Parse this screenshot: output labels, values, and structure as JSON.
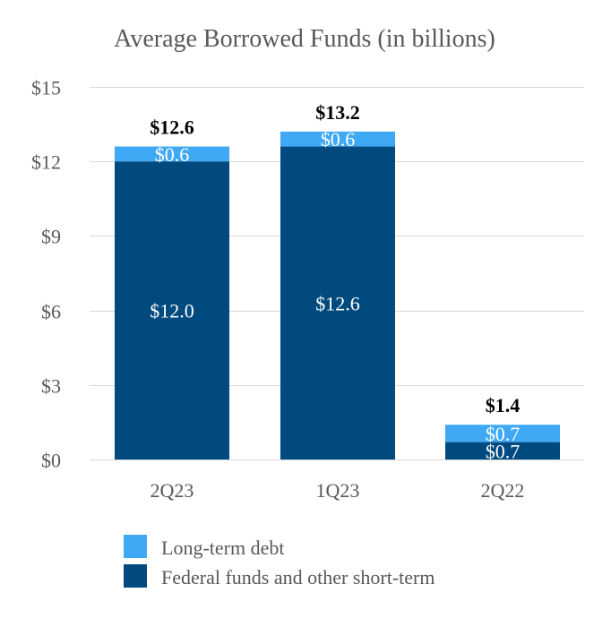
{
  "chart_data": {
    "type": "bar",
    "stacked": true,
    "title": "Average Borrowed Funds (in billions)",
    "categories": [
      "2Q23",
      "1Q23",
      "2Q22"
    ],
    "series": [
      {
        "name": "Federal funds and other short-term",
        "values": [
          12.0,
          12.6,
          0.7
        ],
        "labels": [
          "$12.0",
          "$12.6",
          "$0.7"
        ],
        "color": "#004a7f"
      },
      {
        "name": "Long-term debt",
        "values": [
          0.6,
          0.6,
          0.7
        ],
        "labels": [
          "$0.6",
          "$0.6",
          "$0.7"
        ],
        "color": "#3fa9f5"
      }
    ],
    "totals": [
      12.6,
      13.2,
      1.4
    ],
    "total_labels": [
      "$12.6",
      "$13.2",
      "$1.4"
    ],
    "ylim": [
      0,
      15
    ],
    "yticks": [
      0,
      3,
      6,
      9,
      12,
      15
    ],
    "ytick_labels": [
      "$0",
      "$3",
      "$6",
      "$9",
      "$12",
      "$15"
    ],
    "grid": true,
    "legend_position": "bottom"
  }
}
